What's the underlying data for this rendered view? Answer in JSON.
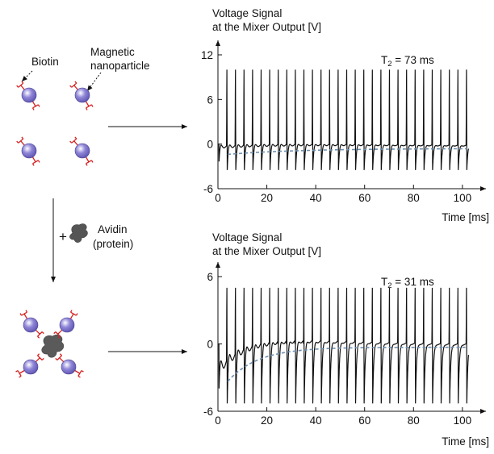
{
  "schematic": {
    "biotin_label": "Biotin",
    "nanoparticle_label_line1": "Magnetic",
    "nanoparticle_label_line2": "nanoparticle",
    "plus_sign": "+",
    "avidin_label_line1": "Avidin",
    "avidin_label_line2": "(protein)"
  },
  "colors": {
    "particle": "#8f86d8",
    "particle_highlight": "#ffffff",
    "biotin": "#d61f1f",
    "avidin": "#5a5a5a",
    "signal": "#111111",
    "decay_trend": "#6f8fae"
  },
  "chart_data": [
    {
      "type": "line",
      "title": "Voltage Signal",
      "subtitle": "at the Mixer Output [V]",
      "annotation_main": "T",
      "annotation_sub": "2",
      "annotation_rest": " = 73 ms",
      "xlabel": "Time [ms]",
      "xlim": [
        0,
        105
      ],
      "ylim": [
        -6,
        12
      ],
      "xticks": [
        0,
        20,
        40,
        60,
        80,
        100
      ],
      "yticks": [
        -6,
        0,
        6,
        12
      ],
      "spike_period_ms": 3.5,
      "spike_count": 29,
      "spike_peak": 10,
      "spike_trough": -3.5,
      "T2_ms": 73,
      "decay_trend_start": -1.5,
      "decay_trend_end": -0.6
    },
    {
      "type": "line",
      "title": "Voltage Signal",
      "subtitle": "at the Mixer Output [V]",
      "annotation_main": "T",
      "annotation_sub": "2",
      "annotation_rest": " = 31 ms",
      "xlabel": "Time [ms]",
      "xlim": [
        0,
        105
      ],
      "ylim": [
        -6,
        6
      ],
      "xticks": [
        0,
        20,
        40,
        60,
        80,
        100
      ],
      "yticks": [
        -6,
        0,
        6
      ],
      "spike_period_ms": 3.5,
      "spike_count": 29,
      "spike_peak": 5,
      "spike_trough": -5.3,
      "T2_ms": 31,
      "decay_trend_start": -4.5,
      "decay_trend_end": -0.3
    }
  ]
}
